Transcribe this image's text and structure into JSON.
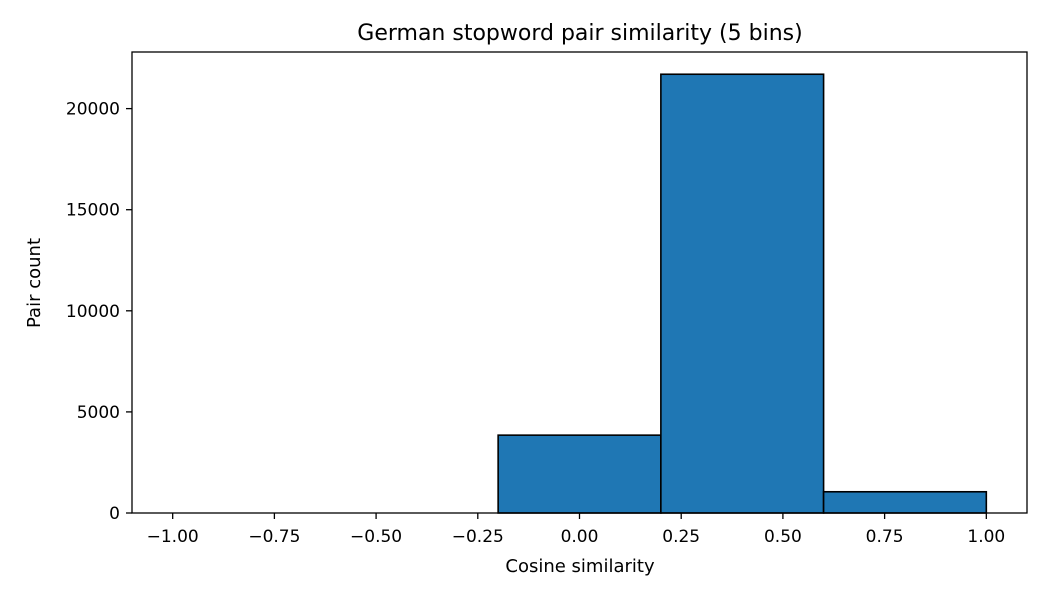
{
  "chart_data": {
    "type": "bar",
    "title": "German stopword pair similarity (5 bins)",
    "xlabel": "Cosine similarity",
    "ylabel": "Pair count",
    "xlim": [
      -1.1,
      1.1
    ],
    "ylim": [
      0,
      22800
    ],
    "bins": [
      {
        "start": -1.0,
        "end": -0.6,
        "count": 0
      },
      {
        "start": -0.6,
        "end": -0.2,
        "count": 0
      },
      {
        "start": -0.2,
        "end": 0.2,
        "count": 3850
      },
      {
        "start": 0.2,
        "end": 0.6,
        "count": 21700
      },
      {
        "start": 0.6,
        "end": 1.0,
        "count": 1050
      }
    ],
    "xticks": [
      {
        "value": -1.0,
        "label": "−1.00"
      },
      {
        "value": -0.75,
        "label": "−0.75"
      },
      {
        "value": -0.5,
        "label": "−0.50"
      },
      {
        "value": -0.25,
        "label": "−0.25"
      },
      {
        "value": 0.0,
        "label": "0.00"
      },
      {
        "value": 0.25,
        "label": "0.25"
      },
      {
        "value": 0.5,
        "label": "0.50"
      },
      {
        "value": 0.75,
        "label": "0.75"
      },
      {
        "value": 1.0,
        "label": "1.00"
      }
    ],
    "yticks": [
      {
        "value": 0,
        "label": "0"
      },
      {
        "value": 5000,
        "label": "5000"
      },
      {
        "value": 10000,
        "label": "10000"
      },
      {
        "value": 15000,
        "label": "15000"
      },
      {
        "value": 20000,
        "label": "20000"
      }
    ],
    "bar_color": "#1f77b4",
    "edge_color": "#000000",
    "grid": false,
    "legend": "none"
  }
}
